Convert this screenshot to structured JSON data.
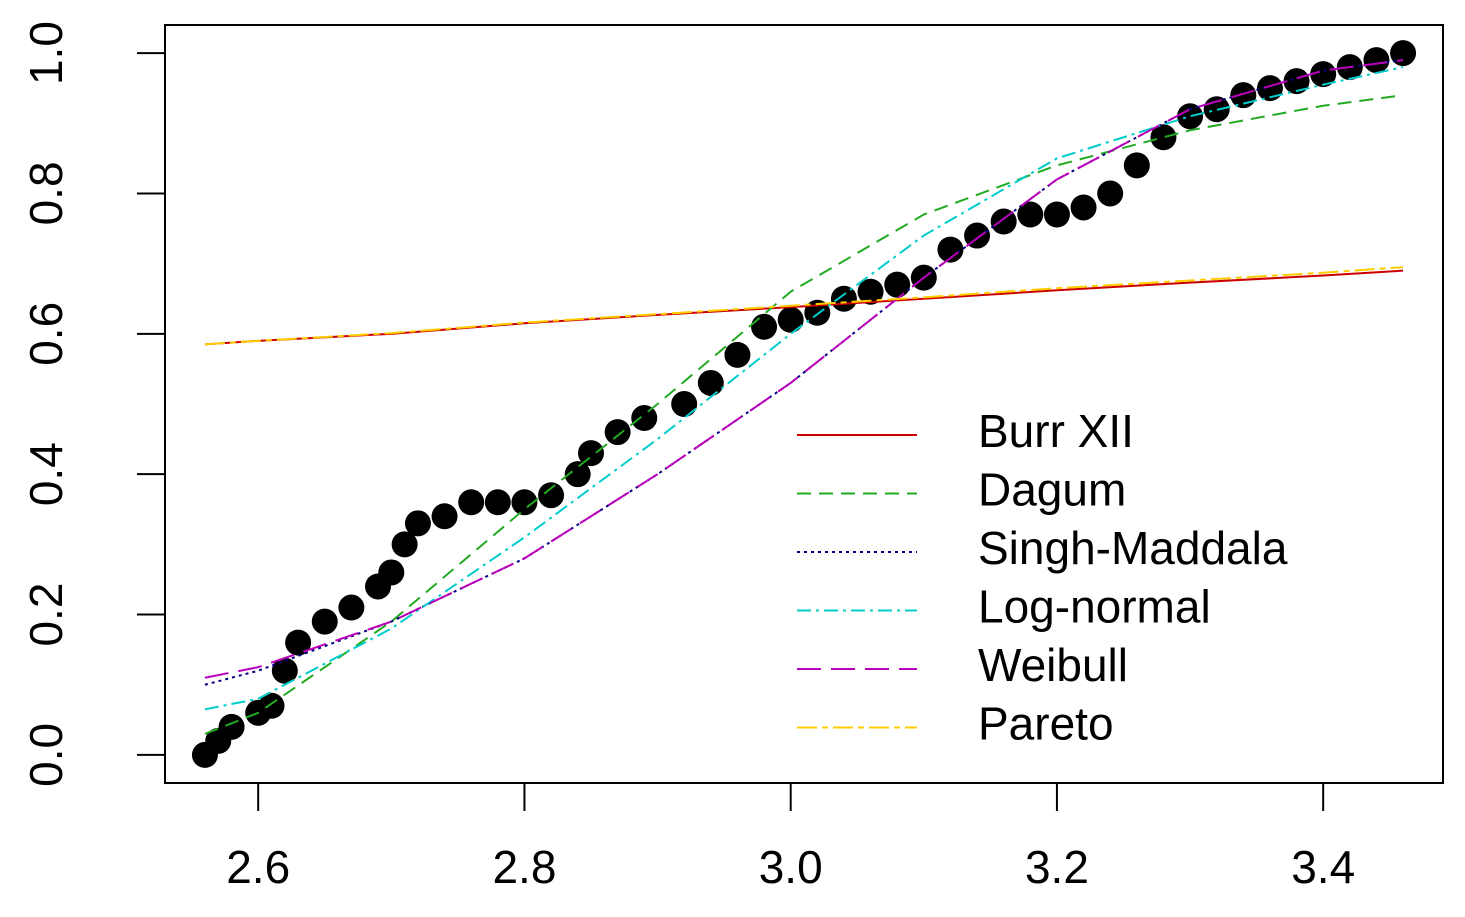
{
  "chart_data": {
    "type": "line",
    "x": [
      2.56,
      2.6,
      2.7,
      2.8,
      2.9,
      3.0,
      3.1,
      3.2,
      3.3,
      3.4,
      3.46
    ],
    "series": [
      {
        "name": "Burr XII",
        "color": "#cc0000",
        "dash": "none",
        "values": [
          0.585,
          0.59,
          0.6,
          0.615,
          0.627,
          0.638,
          0.65,
          0.662,
          0.673,
          0.683,
          0.69
        ]
      },
      {
        "name": "Dagum",
        "color": "#22aa22",
        "dash": "14,8",
        "values": [
          0.03,
          0.06,
          0.19,
          0.35,
          0.5,
          0.66,
          0.77,
          0.84,
          0.89,
          0.925,
          0.94
        ]
      },
      {
        "name": "Singh-Maddala",
        "color": "#000080",
        "dash": "3,4",
        "values": [
          0.1,
          0.12,
          0.19,
          0.28,
          0.4,
          0.53,
          0.68,
          0.82,
          0.92,
          0.975,
          0.99
        ]
      },
      {
        "name": "Log-normal",
        "color": "#00cccc",
        "dash": "14,5,3,5",
        "values": [
          0.065,
          0.08,
          0.18,
          0.31,
          0.45,
          0.6,
          0.74,
          0.85,
          0.91,
          0.955,
          0.98
        ]
      },
      {
        "name": "Weibull",
        "color": "#bb00bb",
        "dash": "24,10",
        "values": [
          0.11,
          0.125,
          0.19,
          0.28,
          0.4,
          0.53,
          0.68,
          0.82,
          0.92,
          0.975,
          0.99
        ]
      },
      {
        "name": "Pareto",
        "color": "#ffcc00",
        "dash": "20,5,6,5",
        "values": [
          0.585,
          0.59,
          0.601,
          0.616,
          0.628,
          0.64,
          0.652,
          0.665,
          0.676,
          0.687,
          0.695
        ]
      }
    ],
    "scatter": {
      "color": "#000000",
      "x": [
        2.56,
        2.57,
        2.58,
        2.6,
        2.61,
        2.62,
        2.63,
        2.65,
        2.67,
        2.69,
        2.7,
        2.71,
        2.72,
        2.74,
        2.76,
        2.78,
        2.8,
        2.82,
        2.84,
        2.85,
        2.87,
        2.89,
        2.92,
        2.94,
        2.96,
        2.98,
        3.0,
        3.02,
        3.04,
        3.06,
        3.08,
        3.1,
        3.12,
        3.14,
        3.16,
        3.18,
        3.2,
        3.22,
        3.24,
        3.26,
        3.28,
        3.3,
        3.32,
        3.34,
        3.36,
        3.38,
        3.4,
        3.42,
        3.44,
        3.46
      ],
      "y": [
        0.0,
        0.02,
        0.04,
        0.06,
        0.07,
        0.12,
        0.16,
        0.19,
        0.21,
        0.24,
        0.26,
        0.3,
        0.33,
        0.34,
        0.36,
        0.36,
        0.36,
        0.37,
        0.4,
        0.43,
        0.46,
        0.48,
        0.5,
        0.53,
        0.57,
        0.61,
        0.62,
        0.63,
        0.65,
        0.66,
        0.67,
        0.68,
        0.72,
        0.74,
        0.76,
        0.77,
        0.77,
        0.78,
        0.8,
        0.84,
        0.88,
        0.91,
        0.92,
        0.94,
        0.95,
        0.96,
        0.97,
        0.98,
        0.99,
        1.0
      ]
    },
    "xlim": [
      2.53,
      3.49
    ],
    "ylim": [
      -0.04,
      1.04
    ],
    "xticks": [
      2.6,
      2.8,
      {
        "value": 3,
        "label": "3.0"
      },
      3.2,
      3.4
    ],
    "yticks": [
      {
        "value": 0,
        "label": "0.0"
      },
      0.2,
      0.4,
      0.6,
      0.8,
      {
        "value": 1,
        "label": "1.0"
      }
    ]
  }
}
